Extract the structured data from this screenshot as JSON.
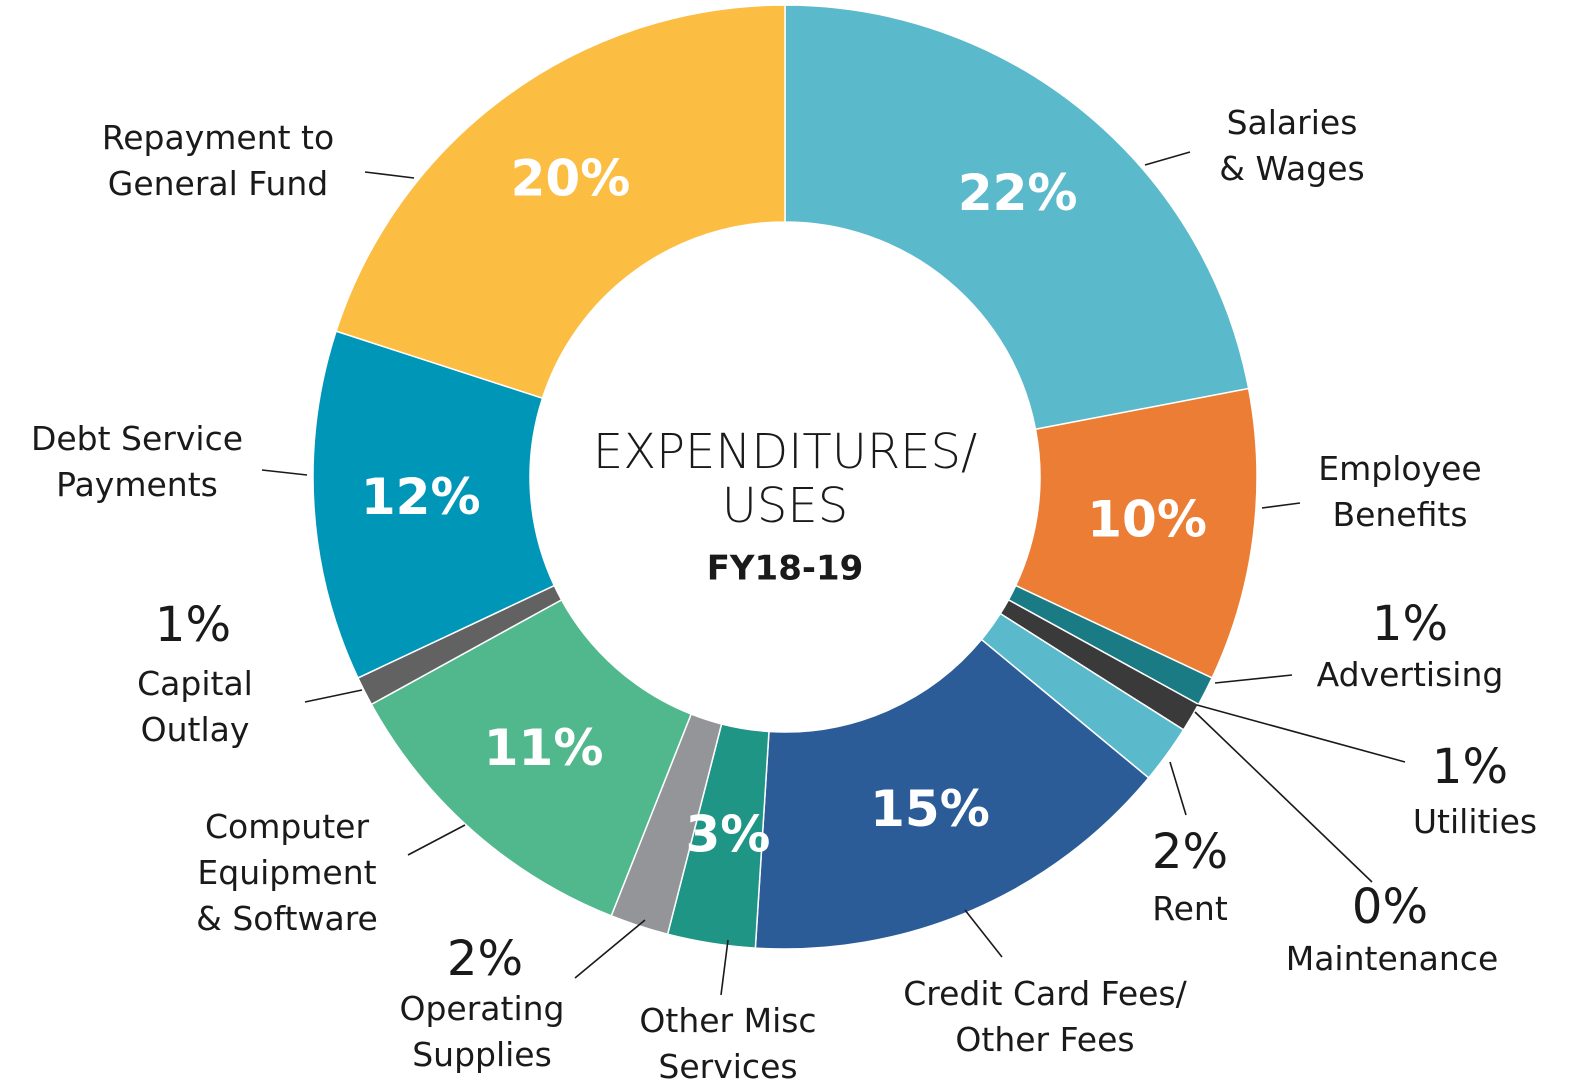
{
  "chart_data": {
    "type": "donut",
    "title": "EXPENDITURES/\nUSES",
    "subtitle": "FY18-19",
    "categories": [
      "Salaries\n& Wages",
      "Employee\nBenefits",
      "Advertising",
      "Utilities",
      "Maintenance",
      "Rent",
      "Credit Card Fees/\nOther Fees",
      "Other Misc\nServices",
      "Operating\nSupplies",
      "Computer\nEquipment\n& Software",
      "Capital\nOutlay",
      "Debt Service\nPayments",
      "Repayment to\nGeneral Fund"
    ],
    "values": [
      22,
      10,
      1,
      1,
      0,
      2,
      15,
      3,
      2,
      11,
      1,
      12,
      20
    ],
    "value_labels": [
      "22%",
      "10%",
      "1%",
      "1%",
      "0%",
      "2%",
      "15%",
      "3%",
      "2%",
      "11%",
      "1%",
      "12%",
      "20%"
    ],
    "colors": [
      "#5ab9cb",
      "#ec7d34",
      "#1a7b85",
      "#3a3a3a",
      "#ffffff",
      "#5ab9cb",
      "#2b5c97",
      "#1e9585",
      "#939598",
      "#51b78c",
      "#636263",
      "#0096b8",
      "#fbbd42"
    ]
  }
}
